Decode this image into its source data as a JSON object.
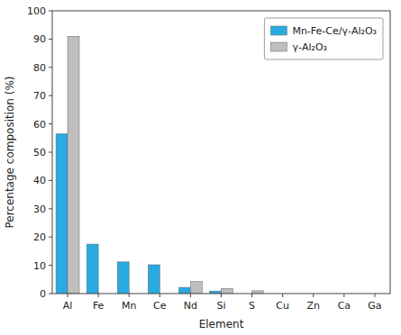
{
  "chart_data": {
    "type": "bar",
    "xlabel": "Element",
    "ylabel": "Percentage composition (%)",
    "categories": [
      "Al",
      "Fe",
      "Mn",
      "Ce",
      "Nd",
      "Si",
      "S",
      "Cu",
      "Zn",
      "Ca",
      "Ga"
    ],
    "series": [
      {
        "name": "Mn-Fe-Ce/γ-Al₂O₃",
        "color": "#29ABE2",
        "values": [
          56.5,
          17.5,
          11.2,
          10.2,
          2.2,
          0.9,
          0.0,
          0.0,
          0.0,
          0.0,
          0.0
        ]
      },
      {
        "name": "γ-Al₂O₃",
        "color": "#BFBFBF",
        "values": [
          91.0,
          0.0,
          0.0,
          0.0,
          4.3,
          1.8,
          1.0,
          0.0,
          0.0,
          0.0,
          0.0
        ]
      }
    ],
    "ylim": [
      0,
      100
    ],
    "yticks": [
      0,
      10,
      20,
      30,
      40,
      50,
      60,
      70,
      80,
      90,
      100
    ],
    "grid": false,
    "legend": "upper right"
  }
}
